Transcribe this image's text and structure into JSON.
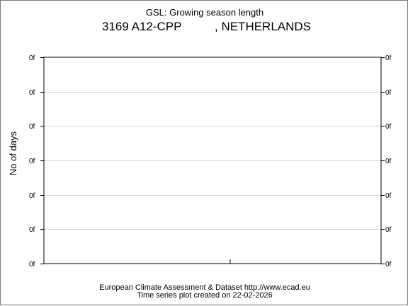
{
  "chart": {
    "title": "GSL: Growing season length",
    "station_id": "3169 A12-CPP",
    "station_country": ", NETHERLANDS",
    "footer_line1": "European Climate Assessment & Dataset  http://www.ecad.eu",
    "footer_line2": "Time series plot created on 22-02-2026"
  },
  "chart_data": {
    "type": "line",
    "title": "GSL: Growing season length",
    "ylabel": "No of days",
    "xlabel": "",
    "y_tick_labels": [
      "0f",
      "0f",
      "0f",
      "0f",
      "0f",
      "0f",
      "0f"
    ],
    "x_tick_labels": [],
    "series": [],
    "grid": true,
    "colors": {
      "gridline": "#d3d3d3",
      "axis": "#000000"
    }
  }
}
